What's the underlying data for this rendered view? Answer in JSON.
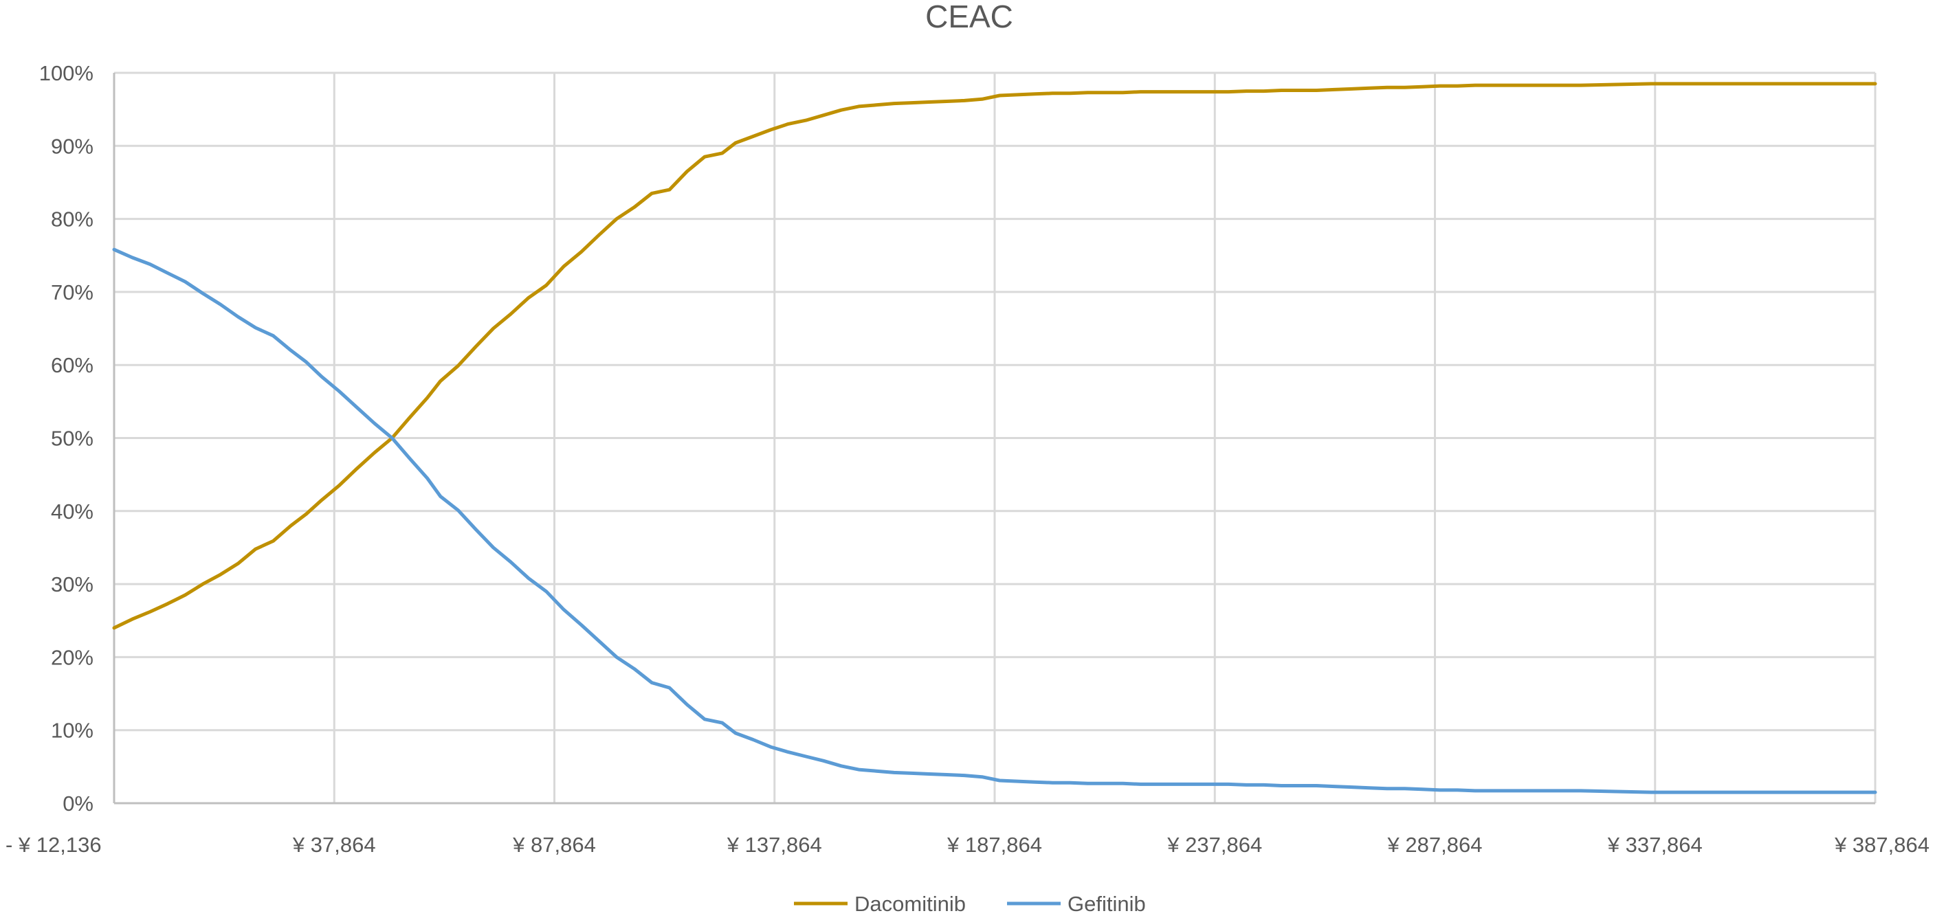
{
  "chart_data": {
    "type": "line",
    "title": "CEAC",
    "xlabel": "",
    "ylabel": "",
    "x_tick_labels": [
      "- ¥ 12,136",
      "¥ 37,864",
      "¥ 87,864",
      "¥ 137,864",
      "¥ 187,864",
      "¥ 237,864",
      "¥ 287,864",
      "¥ 337,864",
      "¥ 387,864"
    ],
    "x_tick_values": [
      -12136,
      37864,
      87864,
      137864,
      187864,
      237864,
      287864,
      337864,
      387864
    ],
    "xlim": [
      -12136,
      387864
    ],
    "y_tick_labels": [
      "0%",
      "10%",
      "20%",
      "30%",
      "40%",
      "50%",
      "60%",
      "70%",
      "80%",
      "90%",
      "100%"
    ],
    "y_tick_values": [
      0,
      10,
      20,
      30,
      40,
      50,
      60,
      70,
      80,
      90,
      100
    ],
    "ylim": [
      0,
      100
    ],
    "grid": true,
    "legend_position": "bottom",
    "x": [
      -12136,
      -8000,
      -4000,
      0,
      4000,
      8000,
      12000,
      16000,
      20000,
      24000,
      28000,
      31500,
      35000,
      39000,
      43000,
      47000,
      51000,
      55000,
      59000,
      62000,
      66000,
      70000,
      74000,
      78000,
      82000,
      86000,
      90000,
      94000,
      98000,
      102000,
      106000,
      110000,
      114000,
      118000,
      122000,
      126000,
      129000,
      133000,
      137000,
      141000,
      145000,
      149000,
      153000,
      157000,
      161000,
      165000,
      169000,
      173000,
      177000,
      181000,
      185000,
      189000,
      193000,
      197000,
      201000,
      205000,
      209000,
      213000,
      217000,
      221000,
      225000,
      229000,
      233000,
      237000,
      241000,
      245000,
      249000,
      253000,
      257000,
      261000,
      265000,
      269000,
      273000,
      277000,
      281000,
      285000,
      289000,
      293000,
      297000,
      305000,
      313000,
      321000,
      329000,
      337000,
      345000,
      353000,
      361000,
      369000,
      377000,
      387864
    ],
    "series": [
      {
        "name": "Dacomitinib",
        "color": "#bf9000",
        "values": [
          24.0,
          25.2,
          26.2,
          27.3,
          28.5,
          30.0,
          31.3,
          32.8,
          34.8,
          35.9,
          38.0,
          39.6,
          41.5,
          43.5,
          45.8,
          48.0,
          50.0,
          52.8,
          55.5,
          57.8,
          59.9,
          62.5,
          65.0,
          67.0,
          69.2,
          70.9,
          73.5,
          75.5,
          77.8,
          80.0,
          81.6,
          83.5,
          84.0,
          86.5,
          88.5,
          89.0,
          90.4,
          91.3,
          92.2,
          93.0,
          93.5,
          94.2,
          94.9,
          95.4,
          95.6,
          95.8,
          95.9,
          96.0,
          96.1,
          96.2,
          96.4,
          96.9,
          97.0,
          97.1,
          97.2,
          97.2,
          97.3,
          97.3,
          97.3,
          97.4,
          97.4,
          97.4,
          97.4,
          97.4,
          97.4,
          97.5,
          97.5,
          97.6,
          97.6,
          97.6,
          97.7,
          97.8,
          97.9,
          98.0,
          98.0,
          98.1,
          98.2,
          98.2,
          98.3,
          98.3,
          98.3,
          98.3,
          98.4,
          98.5,
          98.5,
          98.5,
          98.5,
          98.5,
          98.5,
          98.5
        ]
      },
      {
        "name": "Gefitinib",
        "color": "#5b9bd5",
        "values": [
          75.8,
          74.7,
          73.8,
          72.6,
          71.4,
          69.8,
          68.3,
          66.6,
          65.1,
          64.0,
          62.0,
          60.4,
          58.4,
          56.4,
          54.2,
          52.0,
          50.0,
          47.2,
          44.5,
          42.0,
          40.1,
          37.5,
          35.0,
          33.0,
          30.8,
          29.0,
          26.5,
          24.4,
          22.2,
          20.0,
          18.4,
          16.5,
          15.8,
          13.5,
          11.5,
          11.0,
          9.6,
          8.7,
          7.7,
          7.0,
          6.4,
          5.8,
          5.1,
          4.6,
          4.4,
          4.2,
          4.1,
          4.0,
          3.9,
          3.8,
          3.6,
          3.1,
          3.0,
          2.9,
          2.8,
          2.8,
          2.7,
          2.7,
          2.7,
          2.6,
          2.6,
          2.6,
          2.6,
          2.6,
          2.6,
          2.5,
          2.5,
          2.4,
          2.4,
          2.4,
          2.3,
          2.2,
          2.1,
          2.0,
          2.0,
          1.9,
          1.8,
          1.8,
          1.7,
          1.7,
          1.7,
          1.7,
          1.6,
          1.5,
          1.5,
          1.5,
          1.5,
          1.5,
          1.5,
          1.5
        ]
      }
    ]
  }
}
